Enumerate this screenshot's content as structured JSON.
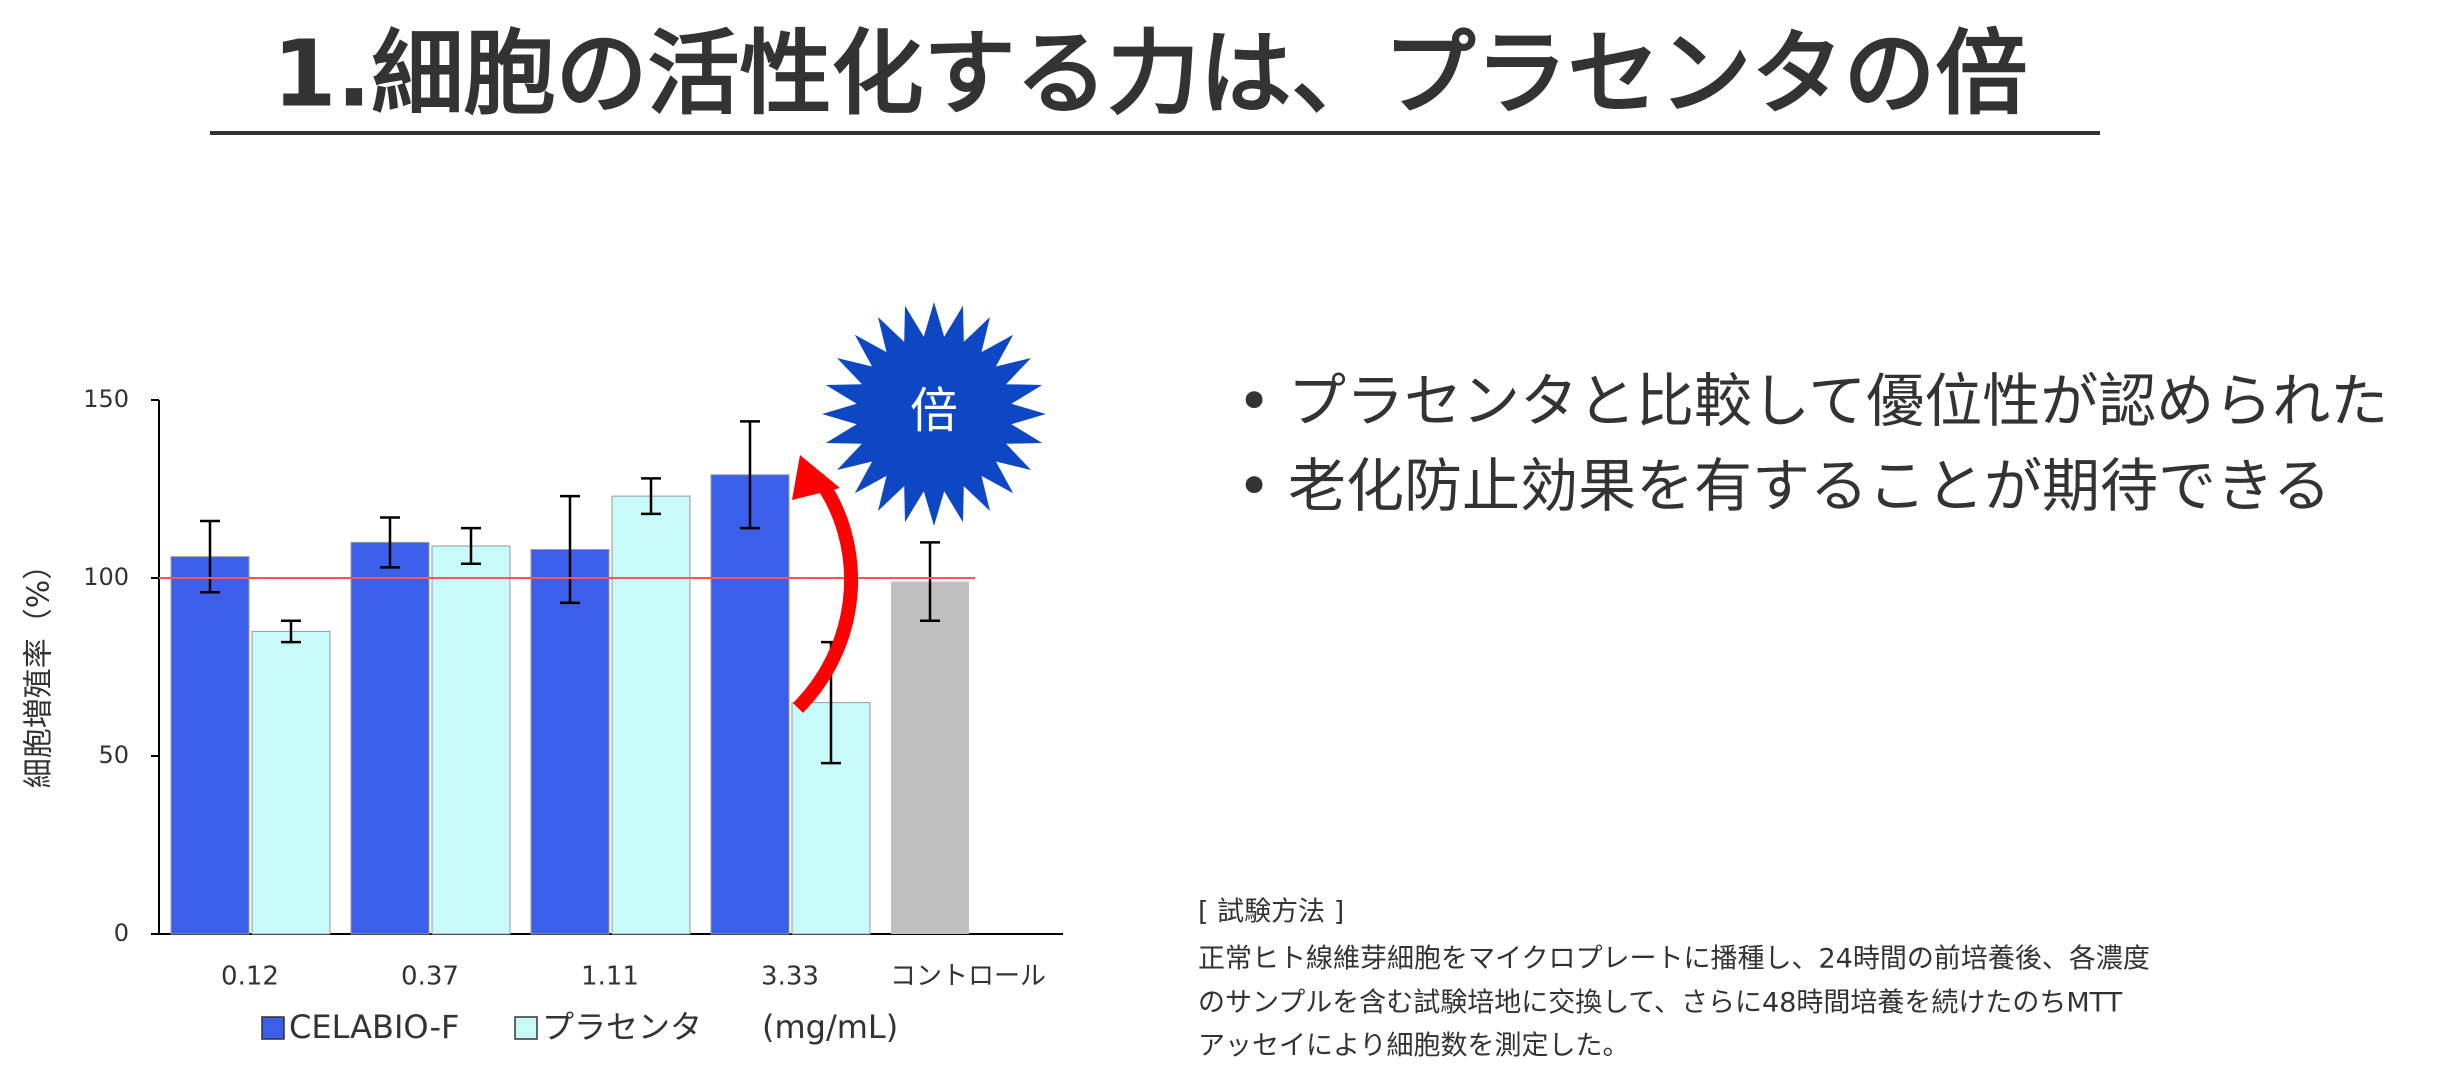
{
  "slide": {
    "title": "1.細胞の活性化する力は、プラセンタの倍",
    "bullets": [
      "プラセンタと比較して優位性が認められた",
      "老化防止効果を有することが期待できる"
    ],
    "method_heading": "[ 試験方法 ]",
    "method_lines": [
      "正常ヒト線維芽細胞をマイクロプレートに播種し、24時間の前培養後、各濃度",
      "のサンプルを含む試験培地に交換して、さらに48時間培養を続けたのちMTT",
      "アッセイにより細胞数を測定した。"
    ]
  },
  "chart_data": {
    "type": "bar",
    "ylabel": "細胞増殖率（%）",
    "unit_label": "(mg/mL)",
    "annotation": "倍",
    "categories": [
      "0.12",
      "0.37",
      "1.11",
      "3.33",
      "コントロール"
    ],
    "series": [
      {
        "name": "CELABIO-F",
        "color": "#3b5fe8",
        "values": [
          106,
          110,
          108,
          129,
          null
        ],
        "errors": [
          10,
          7,
          15,
          15,
          null
        ]
      },
      {
        "name": "プラセンタ",
        "color": "#c8fafa",
        "values": [
          85,
          109,
          123,
          65,
          null
        ],
        "errors": [
          3,
          5,
          5,
          17,
          null
        ]
      }
    ],
    "control": {
      "value": 99,
      "error": 11,
      "color": "#c0c0c0"
    },
    "reference_line": 100,
    "ylim": [
      0,
      150
    ],
    "yticks": [
      0,
      50,
      100,
      150
    ]
  }
}
